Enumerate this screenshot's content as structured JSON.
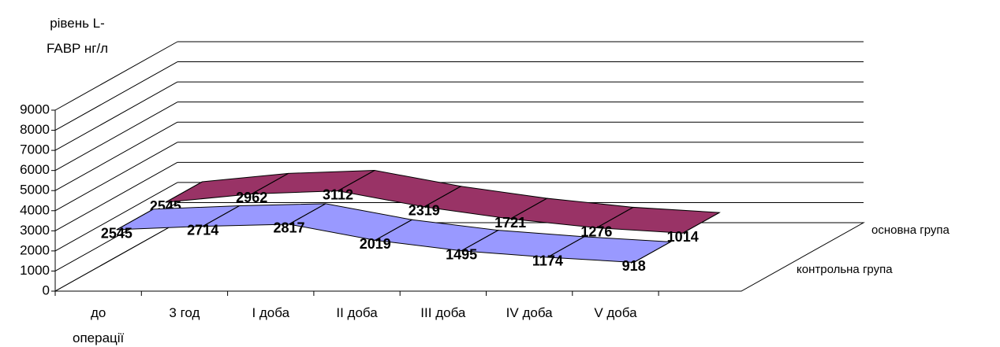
{
  "chart_data": {
    "type": "area3d",
    "y_label": "рівень L-FABP нг/л",
    "categories": [
      "до операції",
      "3 год",
      "I доба",
      "II доба",
      "III доба",
      "IV доба",
      "V доба"
    ],
    "series": [
      {
        "name": "основна група",
        "color": "#993366",
        "values": [
          2545,
          2962,
          3112,
          2319,
          1721,
          1276,
          1014
        ]
      },
      {
        "name": "контрольна група",
        "color": "#9999ff",
        "values": [
          2545,
          2714,
          2817,
          2019,
          1495,
          1174,
          918
        ]
      }
    ],
    "ylim": [
      0,
      9000
    ],
    "yticks": [
      0,
      1000,
      2000,
      3000,
      4000,
      5000,
      6000,
      7000,
      8000,
      9000
    ],
    "grid": true
  }
}
